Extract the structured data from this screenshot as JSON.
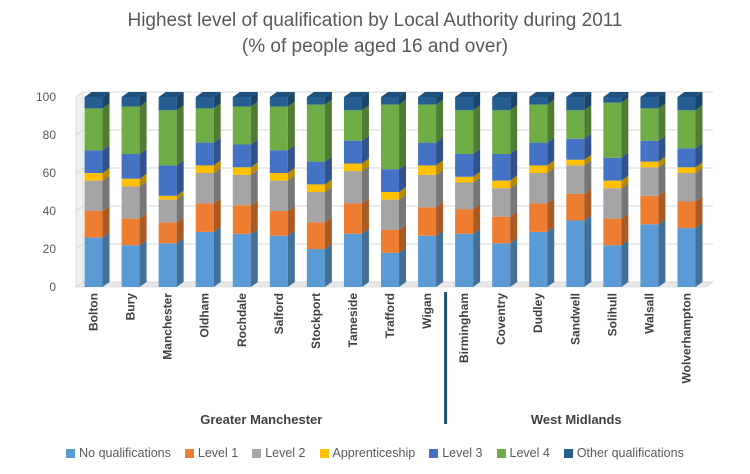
{
  "chart_data": {
    "type": "bar",
    "stacked": true,
    "three_d": true,
    "title": "Highest level of qualification by Local Authority during 2011",
    "subtitle": "(% of people aged 16 and over)",
    "ylim": [
      0,
      100
    ],
    "yticks": [
      0,
      20,
      40,
      60,
      80,
      100
    ],
    "grid": true,
    "legend_position": "bottom",
    "categories": [
      "Bolton",
      "Bury",
      "Manchester",
      "Oldham",
      "Rochdale",
      "Salford",
      "Stockport",
      "Tameside",
      "Trafford",
      "Wigan",
      "Birmingham",
      "Coventry",
      "Dudley",
      "Sandwell",
      "Solihull",
      "Walsall",
      "Wolverhampton"
    ],
    "groups": [
      {
        "name": "Greater Manchester",
        "categories": [
          "Bolton",
          "Bury",
          "Manchester",
          "Oldham",
          "Rochdale",
          "Salford",
          "Stockport",
          "Tameside",
          "Trafford",
          "Wigan"
        ]
      },
      {
        "name": "West Midlands",
        "categories": [
          "Birmingham",
          "Coventry",
          "Dudley",
          "Sandwell",
          "Solihull",
          "Walsall",
          "Wolverhampton"
        ]
      }
    ],
    "series": [
      {
        "name": "No qualifications",
        "color": "#5B9BD5",
        "values": [
          26,
          22,
          23,
          29,
          28,
          27,
          20,
          28,
          18,
          27,
          28,
          23,
          29,
          35,
          22,
          33,
          31
        ]
      },
      {
        "name": "Level 1",
        "color": "#ED7D31",
        "values": [
          14,
          14,
          11,
          15,
          15,
          13,
          14,
          16,
          12,
          15,
          13,
          14,
          15,
          14,
          14,
          15,
          14
        ]
      },
      {
        "name": "Level 2",
        "color": "#A5A5A5",
        "values": [
          16,
          17,
          12,
          16,
          16,
          16,
          16,
          17,
          16,
          17,
          14,
          15,
          16,
          15,
          16,
          15,
          15
        ]
      },
      {
        "name": "Apprenticeship",
        "color": "#FFC000",
        "values": [
          4,
          4,
          2,
          4,
          4,
          4,
          4,
          4,
          4,
          5,
          3,
          4,
          4,
          3,
          4,
          3,
          3
        ]
      },
      {
        "name": "Level 3",
        "color": "#4472C4",
        "values": [
          12,
          13,
          16,
          12,
          12,
          12,
          12,
          12,
          12,
          12,
          12,
          14,
          12,
          11,
          12,
          11,
          10
        ]
      },
      {
        "name": "Level 4",
        "color": "#70AD47",
        "values": [
          22,
          25,
          29,
          18,
          20,
          23,
          30,
          16,
          34,
          20,
          23,
          23,
          20,
          15,
          29,
          17,
          20
        ]
      },
      {
        "name": "Other qualifications",
        "color": "#255E91",
        "values": [
          6,
          5,
          7,
          6,
          5,
          5,
          4,
          7,
          4,
          4,
          7,
          7,
          4,
          7,
          3,
          6,
          7
        ]
      }
    ]
  }
}
